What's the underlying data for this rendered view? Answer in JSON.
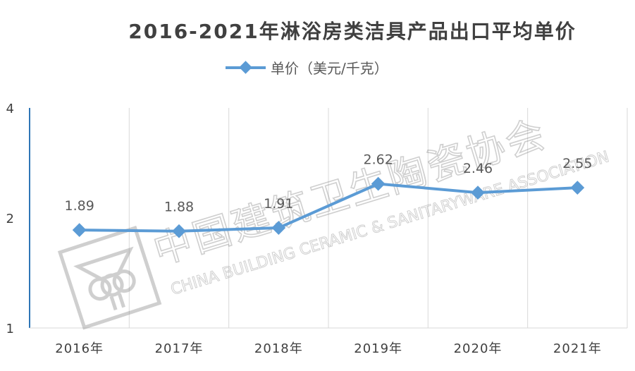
{
  "chart_data": {
    "type": "line",
    "title": "2016-2021年淋浴房类洁具产品出口平均单价",
    "categories": [
      "2016年",
      "2017年",
      "2018年",
      "2019年",
      "2020年",
      "2021年"
    ],
    "series": [
      {
        "name": "单价（美元/千克）",
        "values": [
          1.89,
          1.88,
          1.91,
          2.62,
          2.46,
          2.55
        ]
      }
    ],
    "data_labels": [
      "1.89",
      "1.88",
      "1.91",
      "2.62",
      "2.46",
      "2.55"
    ],
    "y_ticks": [
      {
        "value": 1,
        "label": "1"
      },
      {
        "value": 2,
        "label": "2"
      },
      {
        "value": 4,
        "label": "4"
      }
    ],
    "ylim": [
      1,
      4
    ],
    "grid": "vertical",
    "legend_position": "top-center",
    "colors": {
      "series": "#5b9bd5",
      "grid": "#d9d9d9",
      "watermark": "#8c8c8c"
    }
  },
  "watermark": {
    "cn": "中国建筑卫生陶瓷协会",
    "en": "CHINA BUILDING CERAMIC & SANITARYWARE ASSOCIATION"
  }
}
